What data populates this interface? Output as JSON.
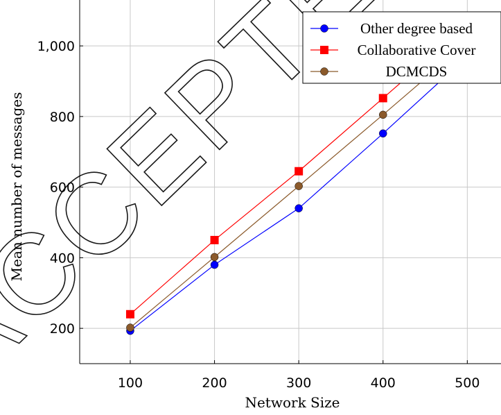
{
  "watermark": {
    "text": "ACCEPTED MANUSCRIPT"
  },
  "chart_data": {
    "type": "line",
    "xlabel": "Network Size",
    "ylabel": "Mean number of messages",
    "x": [
      100,
      200,
      300,
      400,
      500
    ],
    "xticks": [
      100,
      200,
      300,
      400,
      500
    ],
    "xtick_labels": [
      "100",
      "200",
      "300",
      "400",
      "500"
    ],
    "yticks": [
      200,
      400,
      600,
      800,
      1000
    ],
    "ytick_labels": [
      "200",
      "400",
      "600",
      "800",
      "1,000"
    ],
    "xlim": [
      40,
      540
    ],
    "ylim": [
      100,
      1130
    ],
    "grid": true,
    "legend_position": "top-right",
    "series": [
      {
        "name": "Other degree based",
        "color": "#0000ff",
        "marker": "circle",
        "values": [
          193,
          380,
          540,
          752,
          970
        ]
      },
      {
        "name": "Collaborative Cover",
        "color": "#ff0000",
        "marker": "square",
        "values": [
          240,
          450,
          645,
          852,
          1060
        ]
      },
      {
        "name": "DCMCDS",
        "color": "#8b5a2b",
        "marker": "circle",
        "values": [
          202,
          402,
          603,
          805,
          1010
        ]
      }
    ]
  }
}
